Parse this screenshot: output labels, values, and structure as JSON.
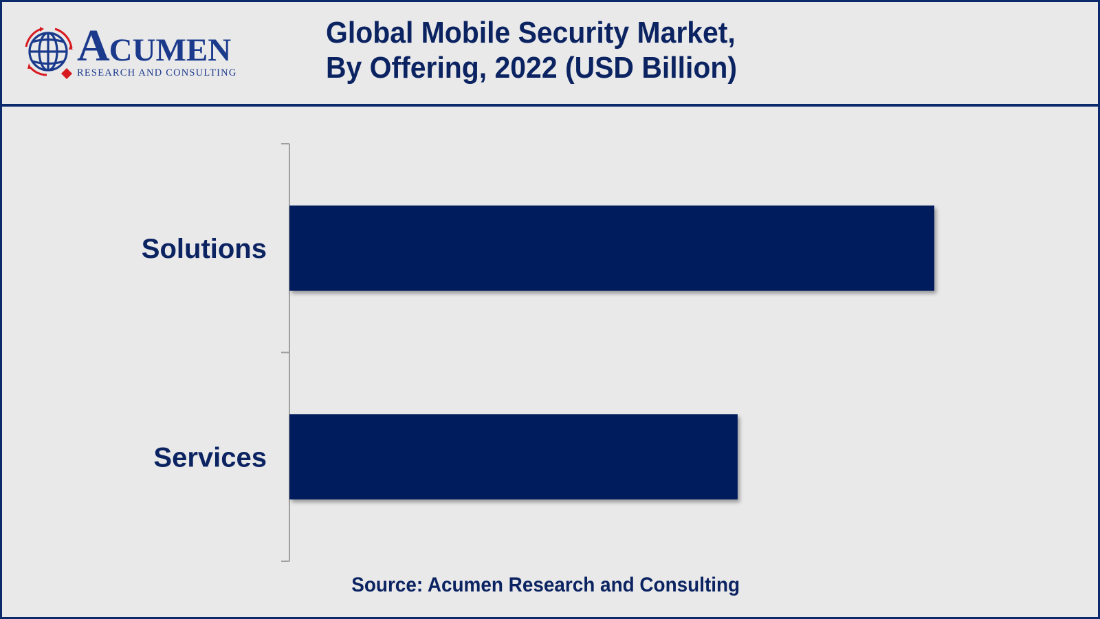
{
  "brand": {
    "name_initial": "A",
    "name_rest": "CUMEN",
    "tagline": "RESEARCH AND CONSULTING",
    "colors": {
      "primary": "#1b3a8c",
      "accent": "#d71920"
    }
  },
  "header": {
    "title_line1": "Global Mobile Security Market,",
    "title_line2": "By Offering, 2022 (USD Billion)"
  },
  "footer": {
    "source": "Source: Acumen Research and Consulting"
  },
  "colors": {
    "bar": "#001f5b",
    "text": "#0b2361",
    "frame": "#0b2a6b",
    "background": "#e9e9ea",
    "axis": "#a0a0a0"
  },
  "chart_data": {
    "type": "bar",
    "orientation": "horizontal",
    "title": "Global Mobile Security Market, By Offering, 2022 (USD Billion)",
    "xlabel": "",
    "ylabel": "",
    "categories": [
      "Solutions",
      "Services"
    ],
    "values": [
      1.0,
      0.695
    ],
    "value_note": "No numeric axis or data labels shown; values are relative bar lengths (fraction of the longest bar).",
    "xlim": [
      0,
      1.0
    ],
    "grid": false,
    "legend": "none",
    "source": "Source: Acumen Research and Consulting"
  }
}
